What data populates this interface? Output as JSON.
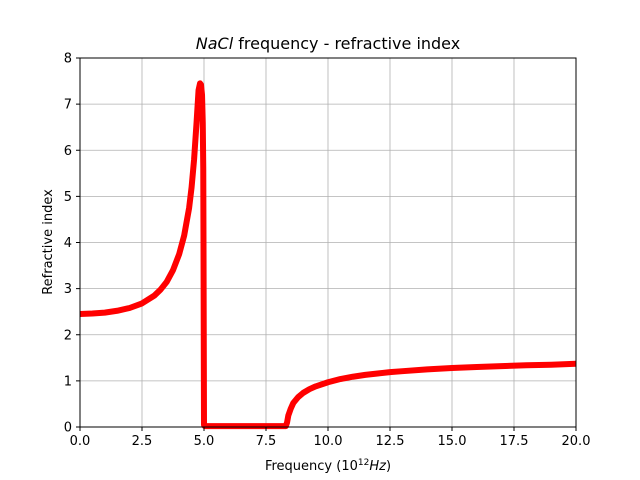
{
  "chart_data": {
    "type": "line",
    "title": {
      "italic_part": "NaCl",
      "rest": " frequency - refractive index"
    },
    "xlabel": {
      "prefix": "Frequency (10",
      "superscript": "12",
      "unit": "Hz",
      "suffix": ")"
    },
    "ylabel": "Refractive index",
    "xlim": [
      0,
      20
    ],
    "ylim": [
      0,
      8
    ],
    "xticks": [
      0,
      2.5,
      5,
      7.5,
      10,
      12.5,
      15,
      17.5,
      20
    ],
    "xtick_labels": [
      "0.0",
      "2.5",
      "5.0",
      "7.5",
      "10.0",
      "12.5",
      "15.0",
      "17.5",
      "20.0"
    ],
    "yticks": [
      0,
      1,
      2,
      3,
      4,
      5,
      6,
      7,
      8
    ],
    "ytick_labels": [
      "0",
      "1",
      "2",
      "3",
      "4",
      "5",
      "6",
      "7",
      "8"
    ],
    "grid": true,
    "series": [
      {
        "color": "#ff0000",
        "x": [
          0,
          0.5,
          1.0,
          1.5,
          2.0,
          2.5,
          3.0,
          3.25,
          3.5,
          3.75,
          4.0,
          4.2,
          4.4,
          4.5,
          4.6,
          4.7,
          4.78,
          4.84,
          4.88,
          4.92,
          4.95,
          4.97,
          4.98,
          4.99,
          5.0,
          5.01,
          5.03,
          5.06,
          5.1,
          5.5,
          6.0,
          7.0,
          8.0,
          8.3,
          8.35,
          8.4,
          8.5,
          8.6,
          8.8,
          9.0,
          9.25,
          9.5,
          10.0,
          10.5,
          11.0,
          11.5,
          12.0,
          12.5,
          13.0,
          14.0,
          15.0,
          16.0,
          17.0,
          18.0,
          19.0,
          20.0
        ],
        "y": [
          2.45,
          2.46,
          2.48,
          2.52,
          2.58,
          2.68,
          2.85,
          2.98,
          3.15,
          3.4,
          3.75,
          4.15,
          4.75,
          5.2,
          5.8,
          6.6,
          7.3,
          7.45,
          7.42,
          7.2,
          6.6,
          5.6,
          4.0,
          2.0,
          0.05,
          0.03,
          0.02,
          0.02,
          0.02,
          0.02,
          0.02,
          0.02,
          0.02,
          0.02,
          0.1,
          0.25,
          0.4,
          0.52,
          0.65,
          0.74,
          0.82,
          0.88,
          0.97,
          1.04,
          1.09,
          1.13,
          1.16,
          1.19,
          1.21,
          1.25,
          1.28,
          1.3,
          1.32,
          1.34,
          1.35,
          1.37
        ]
      }
    ]
  }
}
